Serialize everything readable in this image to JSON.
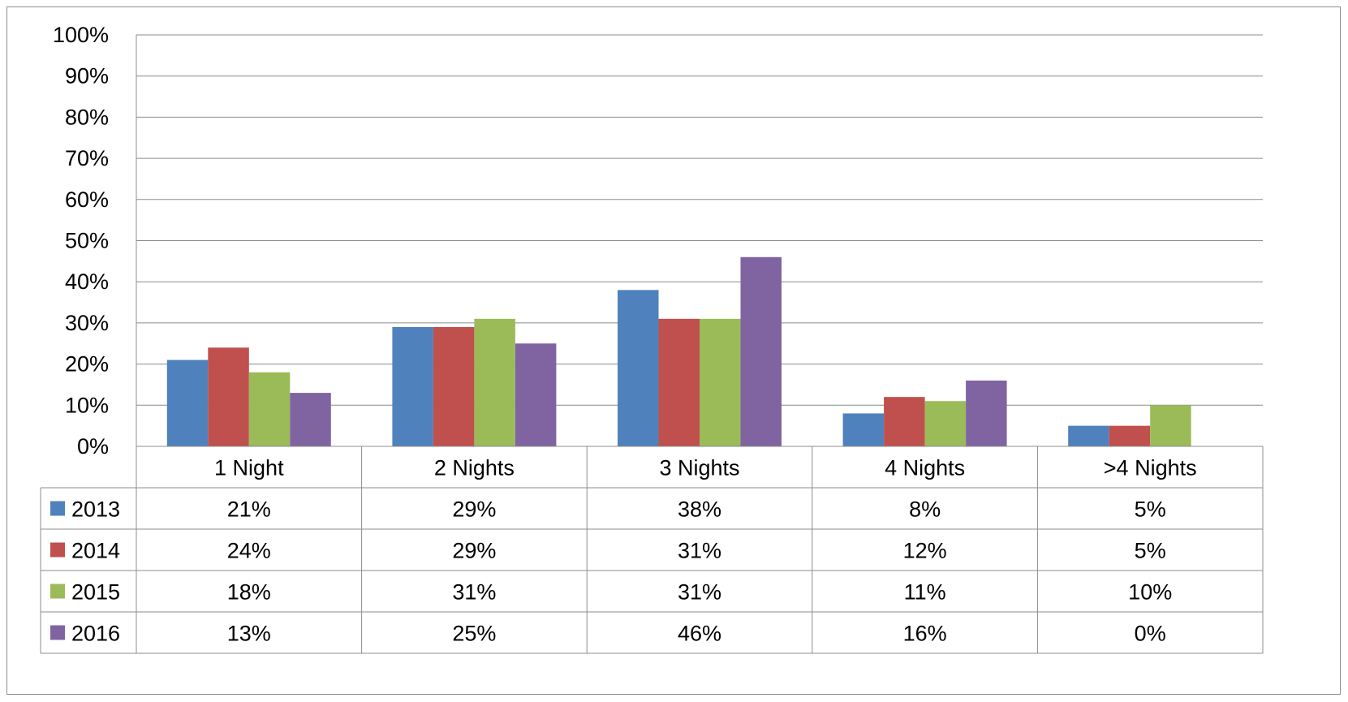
{
  "chart_data": {
    "type": "bar",
    "categories": [
      "1 Night",
      "2 Nights",
      "3 Nights",
      "4 Nights",
      ">4 Nights"
    ],
    "series": [
      {
        "name": "2013",
        "color": "#4f81bd",
        "values": [
          21,
          29,
          38,
          8,
          5
        ],
        "labels": [
          "21%",
          "29%",
          "38%",
          "8%",
          "5%"
        ]
      },
      {
        "name": "2014",
        "color": "#c0504d",
        "values": [
          24,
          29,
          31,
          12,
          5
        ],
        "labels": [
          "24%",
          "29%",
          "31%",
          "12%",
          "5%"
        ]
      },
      {
        "name": "2015",
        "color": "#9bbb59",
        "values": [
          18,
          31,
          31,
          11,
          10
        ],
        "labels": [
          "18%",
          "31%",
          "31%",
          "11%",
          "10%"
        ]
      },
      {
        "name": "2016",
        "color": "#8064a2",
        "values": [
          13,
          25,
          46,
          16,
          0
        ],
        "labels": [
          "13%",
          "25%",
          "46%",
          "16%",
          "0%"
        ]
      }
    ],
    "y_ticks": [
      "0%",
      "10%",
      "20%",
      "30%",
      "40%",
      "50%",
      "60%",
      "70%",
      "80%",
      "90%",
      "100%"
    ],
    "ylim": [
      0,
      100
    ],
    "grid": true,
    "legend": "data-table",
    "title": "",
    "xlabel": "",
    "ylabel": ""
  }
}
